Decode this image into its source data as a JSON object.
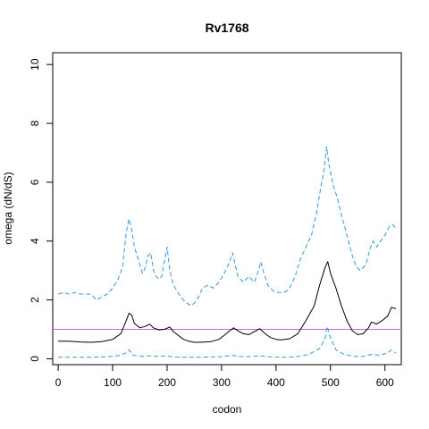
{
  "chart_data": {
    "type": "line",
    "title": "Rv1768",
    "xlabel": "codon",
    "ylabel": "omega (dN/dS)",
    "xlim": [
      -10,
      630
    ],
    "ylim": [
      -0.2,
      10.4
    ],
    "x_ticks": [
      0,
      100,
      200,
      300,
      400,
      500,
      600
    ],
    "y_ticks": [
      0,
      2,
      4,
      6,
      8,
      10
    ],
    "grid": false,
    "legend": "none",
    "reference_line": {
      "y": 1,
      "color": "#cc66cc"
    },
    "series": [
      {
        "style": "solid",
        "color": "#000000",
        "points": [
          [
            0,
            0.6
          ],
          [
            20,
            0.6
          ],
          [
            40,
            0.57
          ],
          [
            60,
            0.56
          ],
          [
            80,
            0.58
          ],
          [
            100,
            0.66
          ],
          [
            115,
            0.85
          ],
          [
            125,
            1.3
          ],
          [
            130,
            1.55
          ],
          [
            135,
            1.48
          ],
          [
            140,
            1.2
          ],
          [
            150,
            1.05
          ],
          [
            160,
            1.1
          ],
          [
            168,
            1.18
          ],
          [
            175,
            1.05
          ],
          [
            185,
            0.98
          ],
          [
            195,
            1.0
          ],
          [
            205,
            1.08
          ],
          [
            210,
            0.95
          ],
          [
            220,
            0.8
          ],
          [
            230,
            0.66
          ],
          [
            240,
            0.6
          ],
          [
            250,
            0.56
          ],
          [
            260,
            0.56
          ],
          [
            280,
            0.58
          ],
          [
            295,
            0.66
          ],
          [
            305,
            0.8
          ],
          [
            315,
            0.95
          ],
          [
            322,
            1.05
          ],
          [
            330,
            0.95
          ],
          [
            340,
            0.85
          ],
          [
            350,
            0.82
          ],
          [
            360,
            0.92
          ],
          [
            370,
            1.02
          ],
          [
            380,
            0.85
          ],
          [
            390,
            0.72
          ],
          [
            400,
            0.66
          ],
          [
            410,
            0.64
          ],
          [
            425,
            0.68
          ],
          [
            440,
            0.85
          ],
          [
            455,
            1.3
          ],
          [
            470,
            1.8
          ],
          [
            480,
            2.5
          ],
          [
            490,
            3.1
          ],
          [
            495,
            3.3
          ],
          [
            500,
            2.9
          ],
          [
            510,
            2.4
          ],
          [
            520,
            1.8
          ],
          [
            530,
            1.3
          ],
          [
            540,
            0.95
          ],
          [
            550,
            0.82
          ],
          [
            560,
            0.85
          ],
          [
            570,
            1.05
          ],
          [
            575,
            1.25
          ],
          [
            585,
            1.18
          ],
          [
            595,
            1.3
          ],
          [
            605,
            1.45
          ],
          [
            612,
            1.75
          ],
          [
            620,
            1.7
          ]
        ]
      },
      {
        "style": "dashed",
        "color": "#3399dd",
        "points": [
          [
            0,
            2.2
          ],
          [
            10,
            2.25
          ],
          [
            20,
            2.2
          ],
          [
            30,
            2.25
          ],
          [
            40,
            2.2
          ],
          [
            50,
            2.2
          ],
          [
            60,
            2.2
          ],
          [
            70,
            2.0
          ],
          [
            80,
            2.1
          ],
          [
            90,
            2.2
          ],
          [
            100,
            2.4
          ],
          [
            110,
            2.7
          ],
          [
            118,
            3.1
          ],
          [
            125,
            4.3
          ],
          [
            130,
            4.75
          ],
          [
            135,
            4.4
          ],
          [
            140,
            3.8
          ],
          [
            145,
            3.5
          ],
          [
            150,
            3.2
          ],
          [
            155,
            2.9
          ],
          [
            160,
            3.1
          ],
          [
            165,
            3.5
          ],
          [
            170,
            3.6
          ],
          [
            175,
            3.0
          ],
          [
            180,
            2.8
          ],
          [
            185,
            2.7
          ],
          [
            190,
            2.8
          ],
          [
            195,
            3.3
          ],
          [
            200,
            3.8
          ],
          [
            205,
            3.0
          ],
          [
            210,
            2.6
          ],
          [
            215,
            2.4
          ],
          [
            225,
            2.1
          ],
          [
            235,
            1.9
          ],
          [
            245,
            1.8
          ],
          [
            255,
            2.0
          ],
          [
            265,
            2.4
          ],
          [
            275,
            2.5
          ],
          [
            285,
            2.4
          ],
          [
            295,
            2.6
          ],
          [
            305,
            2.9
          ],
          [
            315,
            3.3
          ],
          [
            320,
            3.6
          ],
          [
            325,
            3.2
          ],
          [
            330,
            2.8
          ],
          [
            340,
            2.6
          ],
          [
            350,
            2.8
          ],
          [
            360,
            2.6
          ],
          [
            368,
            3.0
          ],
          [
            372,
            3.3
          ],
          [
            378,
            2.9
          ],
          [
            385,
            2.5
          ],
          [
            395,
            2.3
          ],
          [
            405,
            2.25
          ],
          [
            415,
            2.25
          ],
          [
            425,
            2.4
          ],
          [
            435,
            2.8
          ],
          [
            445,
            3.4
          ],
          [
            455,
            3.8
          ],
          [
            465,
            4.2
          ],
          [
            475,
            5.0
          ],
          [
            482,
            5.8
          ],
          [
            488,
            6.4
          ],
          [
            493,
            7.2
          ],
          [
            497,
            6.6
          ],
          [
            505,
            5.9
          ],
          [
            512,
            5.5
          ],
          [
            520,
            4.9
          ],
          [
            530,
            4.2
          ],
          [
            540,
            3.5
          ],
          [
            548,
            3.1
          ],
          [
            555,
            3.0
          ],
          [
            565,
            3.2
          ],
          [
            572,
            3.7
          ],
          [
            578,
            4.0
          ],
          [
            585,
            3.8
          ],
          [
            592,
            4.0
          ],
          [
            600,
            4.2
          ],
          [
            608,
            4.5
          ],
          [
            615,
            4.55
          ],
          [
            620,
            4.4
          ]
        ]
      },
      {
        "style": "dashed",
        "color": "#3399dd",
        "points": [
          [
            0,
            0.05
          ],
          [
            30,
            0.05
          ],
          [
            60,
            0.05
          ],
          [
            90,
            0.07
          ],
          [
            110,
            0.1
          ],
          [
            125,
            0.2
          ],
          [
            130,
            0.3
          ],
          [
            138,
            0.12
          ],
          [
            150,
            0.08
          ],
          [
            170,
            0.1
          ],
          [
            180,
            0.08
          ],
          [
            200,
            0.1
          ],
          [
            210,
            0.06
          ],
          [
            230,
            0.05
          ],
          [
            260,
            0.05
          ],
          [
            300,
            0.07
          ],
          [
            320,
            0.12
          ],
          [
            330,
            0.08
          ],
          [
            350,
            0.07
          ],
          [
            370,
            0.1
          ],
          [
            390,
            0.06
          ],
          [
            420,
            0.05
          ],
          [
            440,
            0.08
          ],
          [
            460,
            0.15
          ],
          [
            480,
            0.35
          ],
          [
            490,
            0.7
          ],
          [
            494,
            1.1
          ],
          [
            500,
            0.7
          ],
          [
            510,
            0.3
          ],
          [
            525,
            0.15
          ],
          [
            545,
            0.08
          ],
          [
            560,
            0.08
          ],
          [
            575,
            0.15
          ],
          [
            590,
            0.12
          ],
          [
            605,
            0.2
          ],
          [
            612,
            0.3
          ],
          [
            620,
            0.2
          ]
        ]
      }
    ]
  }
}
